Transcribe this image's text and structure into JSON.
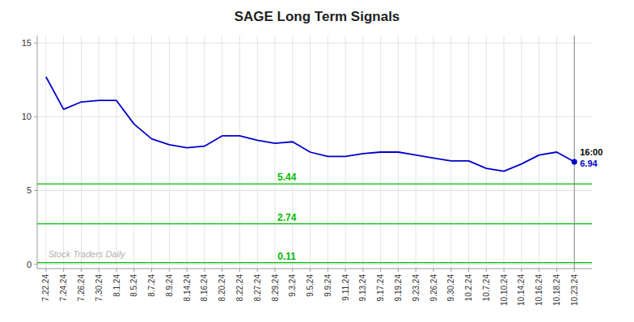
{
  "chart_data": {
    "type": "line",
    "title": "SAGE Long Term Signals",
    "categories": [
      "7.22.24",
      "7.24.24",
      "7.26.24",
      "7.30.24",
      "8.1.24",
      "8.5.24",
      "8.7.24",
      "8.9.24",
      "8.14.24",
      "8.16.24",
      "8.20.24",
      "8.22.24",
      "8.27.24",
      "8.29.24",
      "9.3.24",
      "9.5.24",
      "9.9.24",
      "9.11.24",
      "9.13.24",
      "9.17.24",
      "9.19.24",
      "9.23.24",
      "9.26.24",
      "9.30.24",
      "10.2.24",
      "10.7.24",
      "10.10.24",
      "10.14.24",
      "10.16.24",
      "10.18.24",
      "10.23.24"
    ],
    "values": [
      12.7,
      10.5,
      11.0,
      11.1,
      11.1,
      9.5,
      8.5,
      8.1,
      7.9,
      8.0,
      8.7,
      8.7,
      8.4,
      8.2,
      8.3,
      7.6,
      7.3,
      7.3,
      7.5,
      7.6,
      7.6,
      7.4,
      7.2,
      7.0,
      7.0,
      6.5,
      6.3,
      6.8,
      7.4,
      7.6,
      6.94
    ],
    "color": "#0000cc",
    "ylim": [
      -0.3,
      15.5
    ],
    "yticks": [
      0,
      5,
      10,
      15
    ],
    "grid": true,
    "reference_lines": [
      {
        "value": 5.44,
        "color": "#00bb00"
      },
      {
        "value": 2.74,
        "color": "#00bb00"
      },
      {
        "value": 0.11,
        "color": "#00bb00"
      }
    ],
    "last_point_label": "16:00",
    "watermark": "Stock Traders Daily"
  }
}
